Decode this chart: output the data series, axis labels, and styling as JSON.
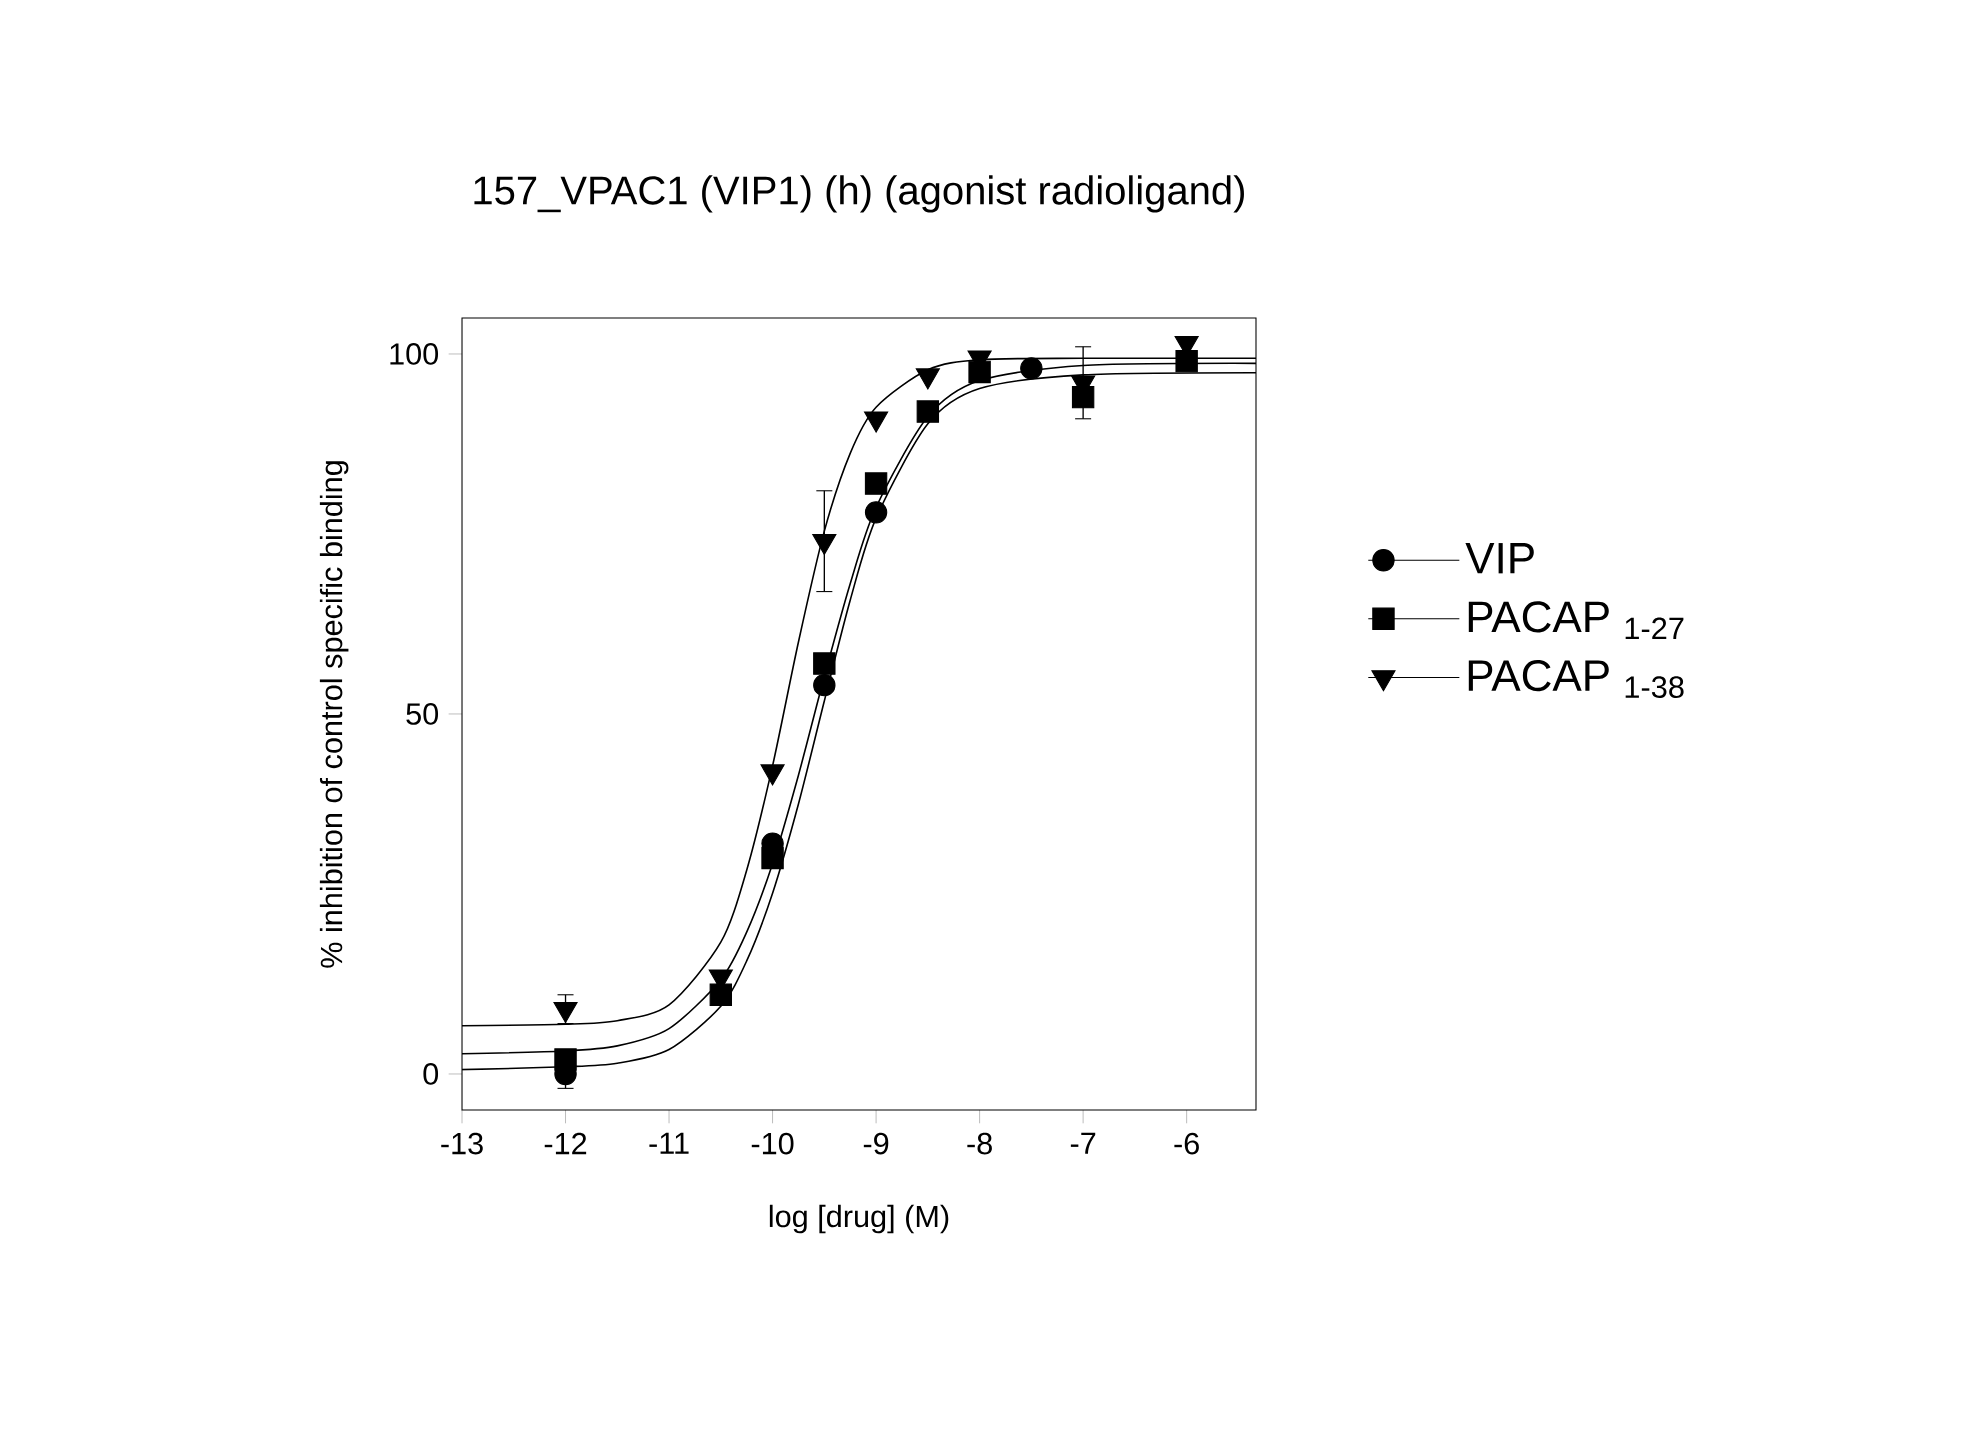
{
  "chart_data": {
    "type": "scatter",
    "title": "157_VPAC1 (VIP1) (h) (agonist radioligand)",
    "xlabel": "log [drug]  (M)",
    "ylabel": "% inhibition of  control specific binding",
    "xlim": [
      -13,
      -5.33
    ],
    "ylim": [
      -5,
      105
    ],
    "xticks": [
      -13,
      -12,
      -11,
      -10,
      -9,
      -8,
      -7,
      -6
    ],
    "yticks": [
      0,
      50,
      100
    ],
    "legend": "right",
    "series": [
      {
        "name": "VIP",
        "color": "#000000",
        "marker": "circle",
        "x": [
          -12,
          -11,
          -10.5,
          -10,
          -9.5,
          -9,
          -8.5,
          -7.5
        ],
        "values": [
          0,
          null,
          null,
          32,
          54,
          78,
          null,
          98
        ],
        "errors": [
          2,
          null,
          null,
          null,
          null,
          null,
          null,
          null
        ]
      },
      {
        "name": "PACAP $_{1-27}$",
        "color": "#000000",
        "marker": "square",
        "x": [
          -12,
          -11,
          -10.5,
          -10,
          -9.5,
          -9,
          -8.5,
          -8,
          -7,
          -6
        ],
        "values": [
          2,
          null,
          11,
          30,
          57,
          82,
          92,
          97.5,
          94,
          99
        ]
      },
      {
        "name": "PACAP $_{1-38}$",
        "color": "#000000",
        "marker": "triangle",
        "x": [
          -12,
          -10.5,
          -10,
          -9.5,
          -9,
          -8.5,
          -8,
          -7,
          -6
        ],
        "values": [
          9,
          13.5,
          42,
          74,
          91,
          97,
          99.5,
          96,
          101.5
        ],
        "errors": [
          2,
          null,
          null,
          7,
          null,
          null,
          null,
          5,
          null
        ]
      },
      {
        "type": "line",
        "color": "#000000",
        "marker": "none",
        "x": [
          -13,
          -12,
          -11.5,
          -11,
          -10.5,
          -10.25,
          -10,
          -9.75,
          -9.5,
          -9.25,
          -9,
          -8.5,
          -8,
          -7,
          -5.33
        ],
        "values": [
          0.6,
          1.0,
          1.5,
          3.4,
          9.4,
          15.7,
          25.1,
          37.5,
          51.8,
          65.8,
          77.2,
          90.3,
          95.2,
          97.1,
          97.4
        ]
      },
      {
        "type": "line",
        "color": "#000000",
        "marker": "none",
        "x": [
          -13,
          -12,
          -11.5,
          -11,
          -10.5,
          -10.25,
          -10,
          -9.75,
          -9.5,
          -9.25,
          -9,
          -8.5,
          -8,
          -7,
          -5.33
        ],
        "values": [
          2.8,
          3.2,
          3.9,
          6.3,
          13.1,
          19.7,
          29.2,
          41.5,
          55.2,
          68.1,
          78.7,
          91.3,
          96.3,
          98.4,
          98.7
        ]
      },
      {
        "type": "line",
        "color": "#000000",
        "marker": "none",
        "x": [
          -13,
          -12,
          -11.5,
          -11,
          -10.5,
          -10.25,
          -10,
          -9.75,
          -9.5,
          -9.25,
          -9,
          -8.5,
          -8,
          -7,
          -5.33
        ],
        "values": [
          6.7,
          6.9,
          7.4,
          9.6,
          18.3,
          28.3,
          42.8,
          60,
          75.4,
          86.2,
          92.6,
          97.8,
          99.2,
          99.4,
          99.4
        ]
      }
    ]
  }
}
